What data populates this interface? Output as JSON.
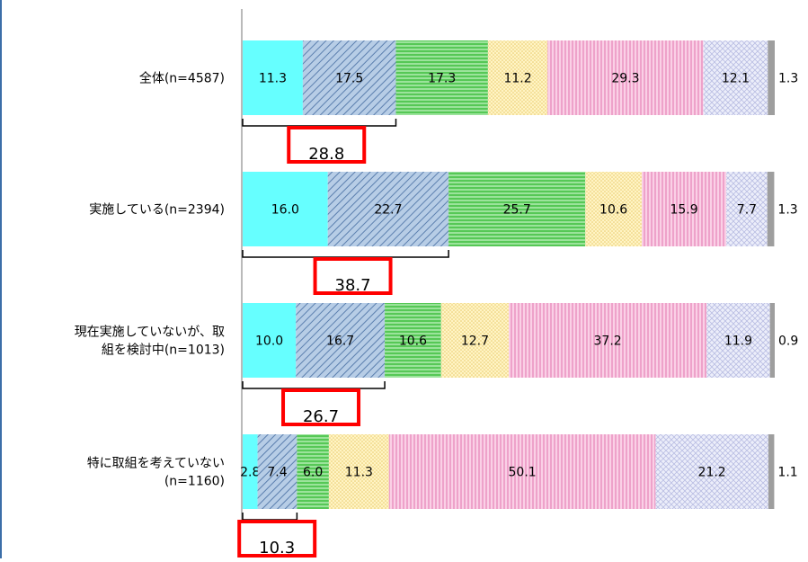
{
  "chart_data": {
    "type": "bar",
    "orientation": "horizontal",
    "stacked": true,
    "percent": true,
    "xlim": [
      0,
      100
    ],
    "grid": false,
    "legend": "none",
    "categories": [
      {
        "label_lines": [
          "全体(n=4587)"
        ]
      },
      {
        "label_lines": [
          "実施している(n=2394)"
        ]
      },
      {
        "label_lines": [
          "現在実施していないが、取",
          "組を検討中(n=1013)"
        ]
      },
      {
        "label_lines": [
          "特に取組を考えていない",
          "(n=1160)"
        ]
      }
    ],
    "series": [
      {
        "color": "#66ffff",
        "pattern": "solid",
        "values": [
          11.3,
          16.0,
          10.0,
          2.8
        ]
      },
      {
        "color": "#b7cde6",
        "pattern": "diagonal",
        "values": [
          17.5,
          22.7,
          16.7,
          7.4
        ]
      },
      {
        "color": "#7fd97f",
        "pattern": "horizontal",
        "values": [
          17.3,
          25.7,
          10.6,
          6.0
        ]
      },
      {
        "color": "#fff0b0",
        "pattern": "dots",
        "values": [
          11.2,
          10.6,
          12.7,
          11.3
        ]
      },
      {
        "color": "#f7bfdc",
        "pattern": "vertical",
        "values": [
          29.3,
          15.9,
          37.2,
          50.1
        ]
      },
      {
        "color": "#e2e4f5",
        "pattern": "crosshatch",
        "values": [
          12.1,
          7.7,
          11.9,
          21.2
        ]
      },
      {
        "color": "#9e9e9e",
        "pattern": "solid",
        "values": [
          1.3,
          1.3,
          0.9,
          1.1
        ]
      }
    ],
    "annotations": [
      {
        "category_index": 0,
        "label": "28.8",
        "series_span": [
          0,
          1
        ]
      },
      {
        "category_index": 1,
        "label": "38.7",
        "series_span": [
          0,
          1
        ]
      },
      {
        "category_index": 2,
        "label": "26.7",
        "series_span": [
          0,
          1
        ]
      },
      {
        "category_index": 3,
        "label": "10.3",
        "series_span": [
          0,
          1
        ]
      }
    ]
  }
}
